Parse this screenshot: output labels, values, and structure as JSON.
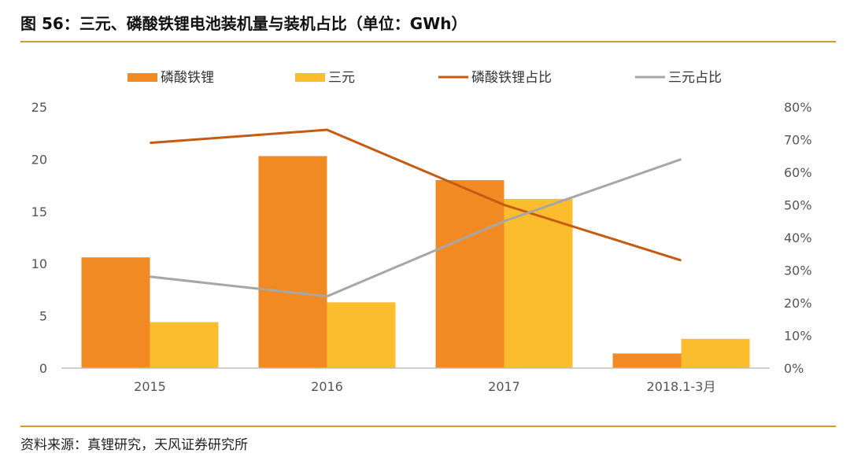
{
  "header": {
    "title": "图 56：三元、磷酸铁锂电池装机量与装机占比（单位：GWh）"
  },
  "footer": {
    "source": "资料来源：真锂研究，天风证券研究所"
  },
  "chart_data": {
    "type": "bar",
    "categories": [
      "2015",
      "2016",
      "2017",
      "2018.1-3月"
    ],
    "series": [
      {
        "name": "磷酸铁锂",
        "kind": "bar",
        "axis": "left",
        "color": "#f28a24",
        "values": [
          10.6,
          20.3,
          18.0,
          1.4
        ]
      },
      {
        "name": "三元",
        "kind": "bar",
        "axis": "left",
        "color": "#fbbd2e",
        "values": [
          4.4,
          6.3,
          16.2,
          2.8
        ]
      },
      {
        "name": "磷酸铁锂占比",
        "kind": "line",
        "axis": "right",
        "color": "#c55a11",
        "values": [
          0.69,
          0.73,
          0.5,
          0.33
        ]
      },
      {
        "name": "三元占比",
        "kind": "line",
        "axis": "right",
        "color": "#a6a6a6",
        "values": [
          0.28,
          0.22,
          0.45,
          0.64
        ]
      }
    ],
    "left_axis": {
      "min": 0,
      "max": 25,
      "ticks": [
        0,
        5,
        10,
        15,
        20,
        25
      ]
    },
    "right_axis": {
      "min": 0,
      "max": 0.8,
      "ticks": [
        0,
        0.1,
        0.2,
        0.3,
        0.4,
        0.5,
        0.6,
        0.7,
        0.8
      ],
      "tick_labels": [
        "0%",
        "10%",
        "20%",
        "30%",
        "40%",
        "50%",
        "60%",
        "70%",
        "80%"
      ]
    },
    "legend_position": "top",
    "grid": false
  }
}
